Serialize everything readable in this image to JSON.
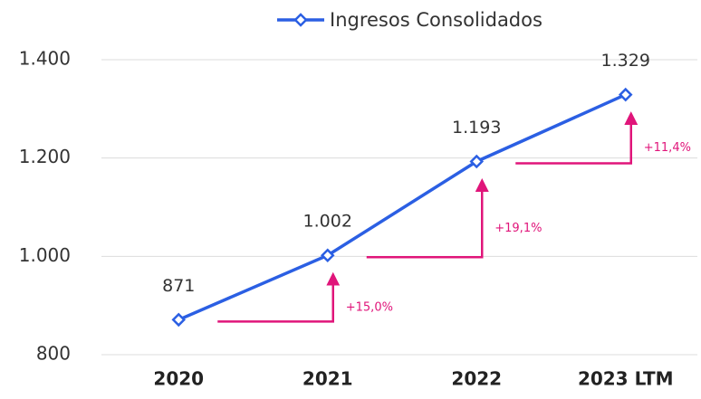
{
  "chart_data": {
    "type": "line",
    "categories": [
      "2020",
      "2021",
      "2022",
      "2023 LTM"
    ],
    "series": [
      {
        "name": "Ingresos Consolidados",
        "color": "#2b5fe3",
        "values": [
          871,
          1002,
          1193,
          1329
        ],
        "value_labels": [
          "871",
          "1.002",
          "1.193",
          "1.329"
        ]
      }
    ],
    "ylim": [
      800,
      1400
    ],
    "yticks": [
      800,
      {
        "value": 1000,
        "label": "1.000"
      },
      {
        "value": 1200,
        "label": "1.200"
      },
      {
        "value": 1400,
        "label": "1.400"
      }
    ],
    "grid": true,
    "legend": "top",
    "annotations": [
      "+15,0%",
      "+19,1%",
      "+11,4%"
    ],
    "annotation_color": "#e0157a"
  }
}
